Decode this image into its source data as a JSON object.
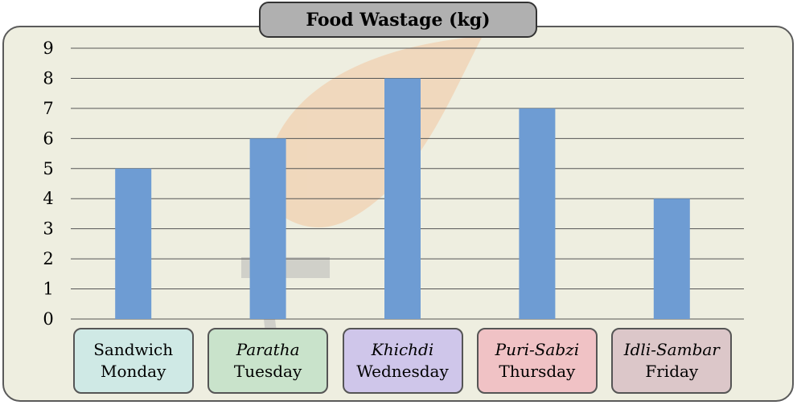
{
  "chart_data": {
    "type": "bar",
    "title": "Food Wastage (kg)",
    "categories": [
      {
        "dish": "Sandwich",
        "day": "Monday",
        "italic": false,
        "box_color": "#cfe9e5"
      },
      {
        "dish": "Paratha",
        "day": "Tuesday",
        "italic": true,
        "box_color": "#c9e3cb"
      },
      {
        "dish": "Khichdi",
        "day": "Wednesday",
        "italic": true,
        "box_color": "#cfc6ea"
      },
      {
        "dish": "Puri-Sabzi",
        "day": "Thursday",
        "italic": true,
        "box_color": "#f0c2c5"
      },
      {
        "dish": "Idli-Sambar",
        "day": "Friday",
        "italic": true,
        "box_color": "#dcc7c9"
      }
    ],
    "values": [
      5,
      6,
      8,
      7,
      4
    ],
    "ylim": [
      0,
      9
    ],
    "yticks": [
      0,
      1,
      2,
      3,
      4,
      5,
      6,
      7,
      8,
      9
    ],
    "grid": true,
    "bar_color": "#6e9cd3",
    "background_color": "#eeeee0"
  }
}
